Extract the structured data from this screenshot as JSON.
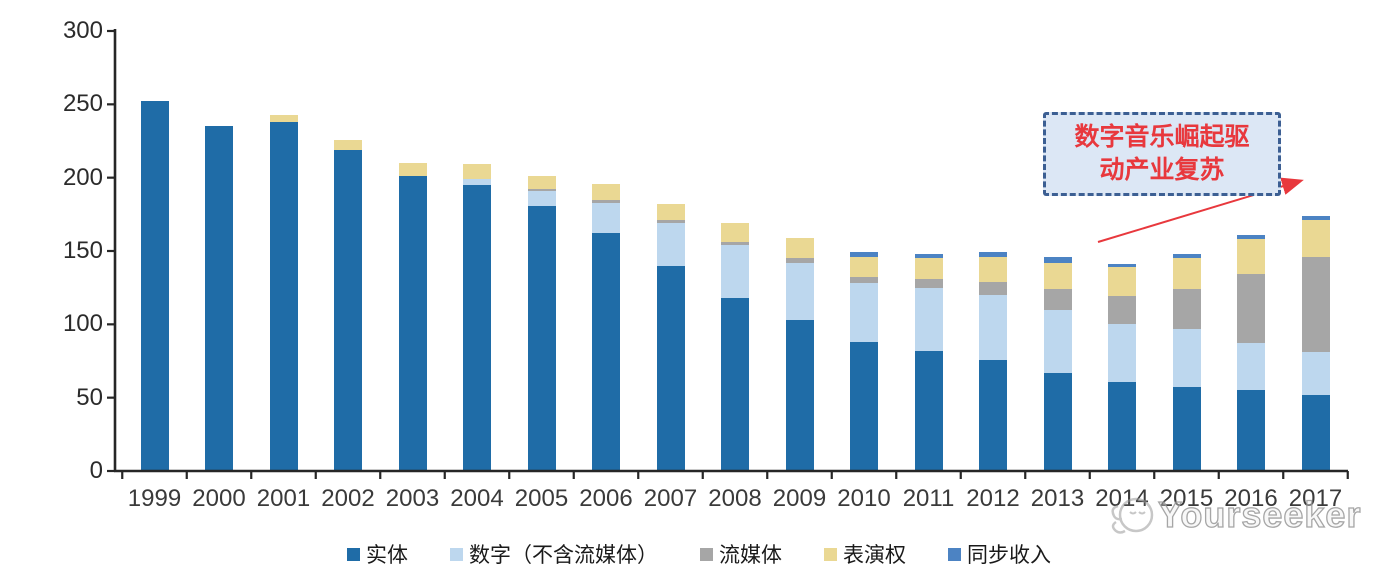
{
  "chart_data": {
    "type": "bar",
    "stacked": true,
    "title": "",
    "xlabel": "",
    "ylabel": "",
    "ylim": [
      0,
      300
    ],
    "yticks": [
      0,
      50,
      100,
      150,
      200,
      250,
      300
    ],
    "grid": false,
    "legend_position": "bottom",
    "categories": [
      "1999",
      "2000",
      "2001",
      "2002",
      "2003",
      "2004",
      "2005",
      "2006",
      "2007",
      "2008",
      "2009",
      "2010",
      "2011",
      "2012",
      "2013",
      "2014",
      "2015",
      "2016",
      "2017"
    ],
    "series": [
      {
        "id": "physical",
        "name": "实体",
        "color": "#1f6ca7",
        "values": [
          252,
          235,
          238,
          219,
          201,
          195,
          181,
          162,
          140,
          118,
          103,
          88,
          82,
          76,
          67,
          61,
          57,
          55,
          52
        ]
      },
      {
        "id": "digital-excl-streaming",
        "name": "数字（不含流媒体）",
        "color": "#bdd7ee",
        "values": [
          0,
          0,
          0,
          0,
          0,
          4,
          10,
          21,
          29,
          36,
          39,
          40,
          43,
          44,
          43,
          39,
          40,
          32,
          29
        ]
      },
      {
        "id": "streaming",
        "name": "流媒体",
        "color": "#a6a6a6",
        "values": [
          0,
          0,
          0,
          0,
          0,
          0,
          1,
          2,
          2,
          2,
          3,
          4,
          6,
          9,
          14,
          19,
          27,
          47,
          65
        ]
      },
      {
        "id": "performance-rights",
        "name": "表演权",
        "color": "#ead893",
        "values": [
          0,
          0,
          5,
          7,
          9,
          10,
          9,
          11,
          11,
          13,
          14,
          14,
          14,
          17,
          18,
          20,
          21,
          24,
          25
        ]
      },
      {
        "id": "sync-revenue",
        "name": "同步收入",
        "color": "#4c83c3",
        "values": [
          0,
          0,
          0,
          0,
          0,
          0,
          0,
          0,
          0,
          0,
          0,
          3,
          3,
          3,
          4,
          2,
          3,
          3,
          3
        ]
      }
    ]
  },
  "annotation": {
    "line1": "数字音乐崛起驱",
    "line2": "动产业复苏",
    "text_color": "#e8383d",
    "border_color": "#3c5f93",
    "fill_color": "#dce7f5",
    "arrow_color": "#e8383d"
  },
  "watermark": {
    "text": "Yourseeker",
    "logo": "yourseeker-logo"
  },
  "axis": {
    "color": "#262626",
    "label_color": "#2b2b2b"
  }
}
